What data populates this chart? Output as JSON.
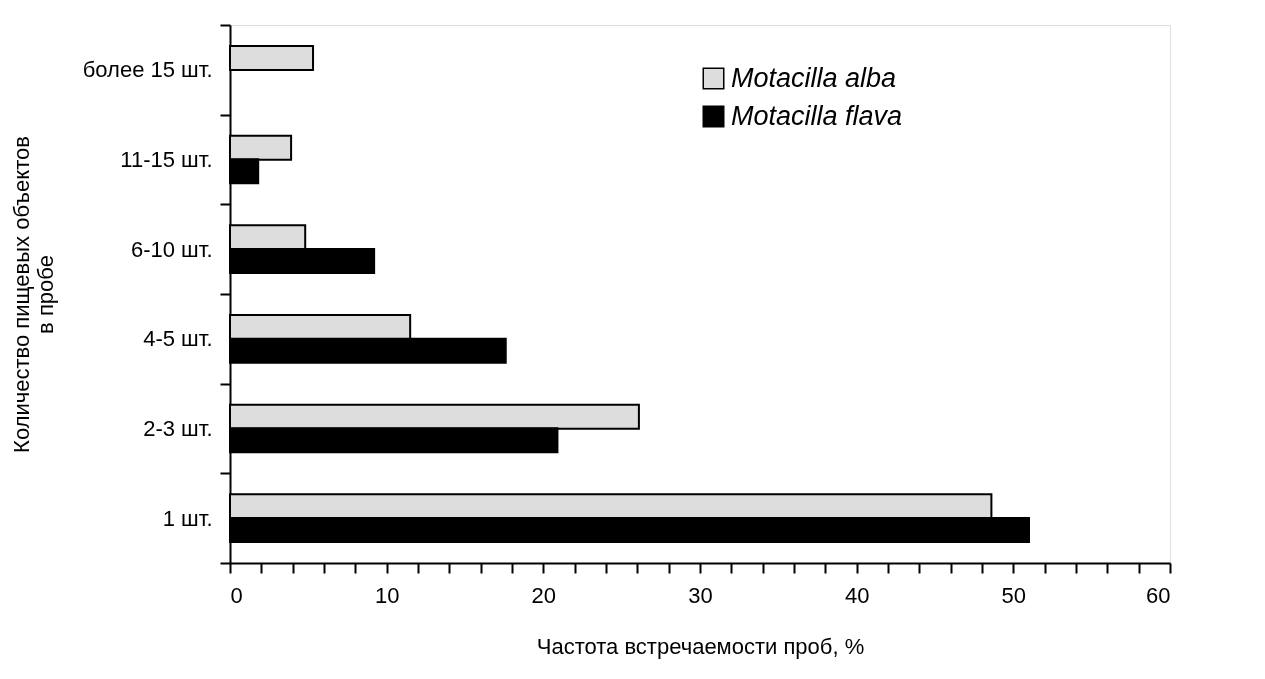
{
  "chart_data": {
    "type": "bar",
    "orientation": "horizontal",
    "xlabel": "Частота встречаемости проб, %",
    "ylabel": "Количество пищевых объектов\nв пробе",
    "categories": [
      "более 15 шт.",
      "11-15 шт.",
      "6-10 шт.",
      "4-5 шт.",
      "2-3 шт.",
      "1 шт."
    ],
    "series": [
      {
        "name": "Motacilla alba",
        "color": "#dddddd",
        "values": [
          5.3,
          3.9,
          4.8,
          11.5,
          26.1,
          48.6
        ]
      },
      {
        "name": "Motacilla flava",
        "color": "#000000",
        "values": [
          null,
          1.8,
          9.2,
          17.6,
          20.9,
          51.0
        ]
      }
    ],
    "xlim": [
      0,
      60
    ],
    "xticks": [
      0,
      {
        "value": 2,
        "label": null
      },
      {
        "value": 4,
        "label": null
      },
      {
        "value": 6,
        "label": null
      },
      {
        "value": 8,
        "label": null
      },
      10,
      {
        "value": 12,
        "label": null
      },
      {
        "value": 14,
        "label": null
      },
      {
        "value": 16,
        "label": null
      },
      {
        "value": 18,
        "label": null
      },
      20,
      {
        "value": 22,
        "label": null
      },
      {
        "value": 24,
        "label": null
      },
      {
        "value": 26,
        "label": null
      },
      {
        "value": 28,
        "label": null
      },
      30,
      {
        "value": 32,
        "label": null
      },
      {
        "value": 34,
        "label": null
      },
      {
        "value": 36,
        "label": null
      },
      {
        "value": 38,
        "label": null
      },
      40,
      {
        "value": 42,
        "label": null
      },
      {
        "value": 44,
        "label": null
      },
      {
        "value": 46,
        "label": null
      },
      {
        "value": 48,
        "label": null
      },
      50,
      {
        "value": 52,
        "label": null
      },
      {
        "value": 54,
        "label": null
      },
      {
        "value": 56,
        "label": null
      },
      {
        "value": 58,
        "label": null
      },
      60
    ],
    "grid": false,
    "legend": "top right"
  }
}
